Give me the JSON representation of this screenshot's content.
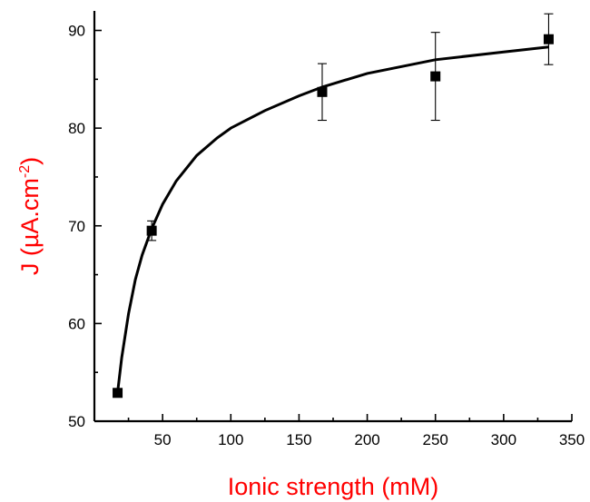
{
  "chart_data": {
    "type": "scatter",
    "title": "",
    "xlabel": "Ionic strength (mM)",
    "ylabel_main": "J (µA.cm",
    "ylabel_sup": "-2",
    "ylabel_close": ")",
    "label_color": "#ff0000",
    "xlim": [
      0,
      350
    ],
    "ylim": [
      50,
      92
    ],
    "xticks": [
      50,
      100,
      150,
      200,
      250,
      300,
      350
    ],
    "yticks": [
      50,
      60,
      70,
      80,
      90
    ],
    "x_minor_ticks": [
      25,
      75,
      125,
      175,
      225,
      275,
      325
    ],
    "y_minor_ticks": [
      55,
      65,
      75,
      85
    ],
    "grid": false,
    "legend": "none",
    "series": [
      {
        "points": [
          {
            "x": 17,
            "y": 52.9,
            "err": 0
          },
          {
            "x": 42,
            "y": 69.5,
            "err": 1.0
          },
          {
            "x": 167,
            "y": 83.7,
            "err": 2.9
          },
          {
            "x": 250,
            "y": 85.3,
            "err": 4.5
          },
          {
            "x": 333,
            "y": 89.1,
            "err": 2.6
          }
        ]
      }
    ],
    "fit_curve": [
      [
        17,
        52.9
      ],
      [
        20,
        56.5
      ],
      [
        25,
        61.0
      ],
      [
        30,
        64.5
      ],
      [
        35,
        67.0
      ],
      [
        42,
        69.7
      ],
      [
        50,
        72.2
      ],
      [
        60,
        74.6
      ],
      [
        75,
        77.2
      ],
      [
        90,
        79.0
      ],
      [
        100,
        80.0
      ],
      [
        125,
        81.8
      ],
      [
        150,
        83.3
      ],
      [
        167,
        84.2
      ],
      [
        200,
        85.6
      ],
      [
        250,
        87.0
      ],
      [
        300,
        87.8
      ],
      [
        333,
        88.3
      ]
    ]
  }
}
